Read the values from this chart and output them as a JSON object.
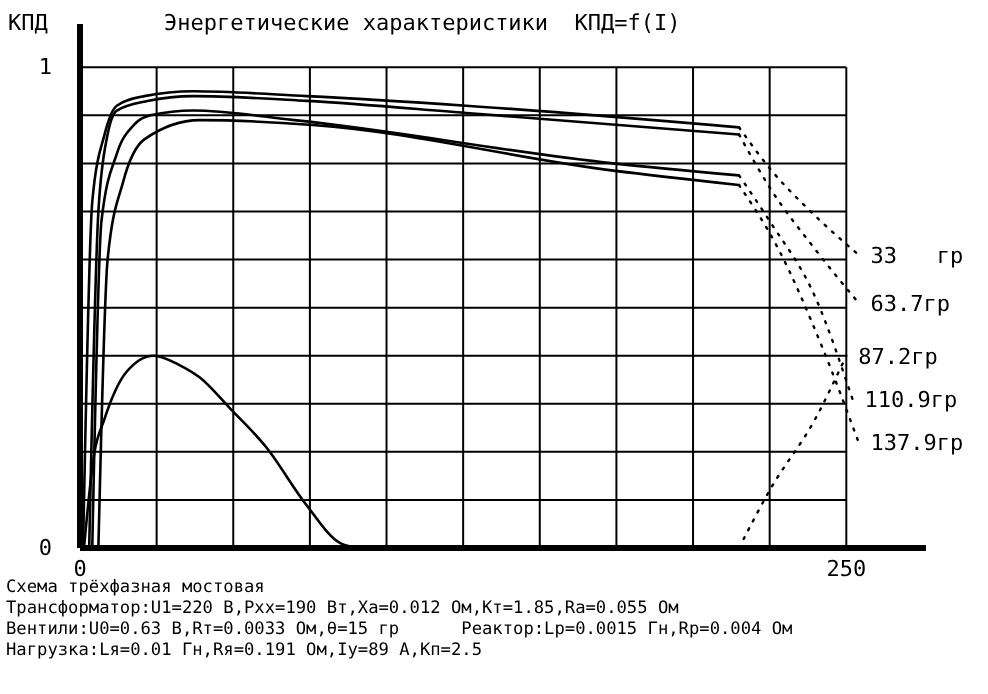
{
  "chart_data": {
    "type": "line",
    "title": "Энергетические характеристики  КПД=f(I)",
    "ylabel": "КПД",
    "xlim": [
      0,
      276
    ],
    "ylim": [
      0,
      1.09
    ],
    "xticks": [
      0,
      {
        "value": 25,
        "label": null
      },
      {
        "value": 50,
        "label": null
      },
      {
        "value": 75,
        "label": null
      },
      {
        "value": 100,
        "label": null
      },
      {
        "value": 125,
        "label": null
      },
      {
        "value": 150,
        "label": null
      },
      {
        "value": 175,
        "label": null
      },
      {
        "value": 200,
        "label": null
      },
      {
        "value": 225,
        "label": null
      },
      250
    ],
    "yticks": [
      0,
      {
        "value": 0.1,
        "label": null
      },
      {
        "value": 0.2,
        "label": null
      },
      {
        "value": 0.3,
        "label": null
      },
      {
        "value": 0.4,
        "label": null
      },
      {
        "value": 0.5,
        "label": null
      },
      {
        "value": 0.6,
        "label": null
      },
      {
        "value": 0.7,
        "label": null
      },
      {
        "value": 0.8,
        "label": null
      },
      {
        "value": 0.9,
        "label": null
      },
      1
    ],
    "grid": true,
    "marker": "none",
    "series": [
      {
        "color": "#000000",
        "line_style": "solid",
        "x": [
          1,
          4,
          8,
          12,
          21,
          37,
          74,
          126,
          215
        ],
        "values": [
          0,
          0.72,
          0.86,
          0.92,
          0.94,
          0.95,
          0.94,
          0.92,
          0.875
        ]
      },
      {
        "color": "#000000",
        "line_style": "solid",
        "x": [
          3,
          6,
          9,
          12,
          22,
          37,
          74,
          126,
          215
        ],
        "values": [
          0,
          0.7,
          0.86,
          0.91,
          0.93,
          0.94,
          0.93,
          0.905,
          0.86
        ]
      },
      {
        "color": "#000000",
        "line_style": "solid",
        "x": [
          4,
          7,
          12,
          17.6,
          23,
          37,
          70,
          174,
          215
        ],
        "values": [
          0,
          0.68,
          0.82,
          0.88,
          0.9,
          0.91,
          0.89,
          0.8,
          0.775
        ]
      },
      {
        "color": "#000000",
        "line_style": "solid",
        "x": [
          6,
          9,
          14,
          21,
          39,
          76,
          174,
          215
        ],
        "values": [
          0,
          0.6,
          0.76,
          0.85,
          0.89,
          0.88,
          0.785,
          0.755
        ]
      },
      {
        "color": "#000000",
        "line_style": "solid",
        "x": [
          1.3,
          4.6,
          7.8,
          15,
          24,
          32.6,
          39,
          49,
          60.7,
          73.8,
          84.9,
          91
        ],
        "values": [
          0,
          0.195,
          0.265,
          0.365,
          0.4,
          0.38,
          0.355,
          0.29,
          0.21,
          0.09,
          0.01,
          0
        ]
      },
      {
        "name": "33   гр",
        "color": "#000000",
        "line_style": "dotted",
        "x": [
          215,
          225,
          240,
          254
        ],
        "values": [
          0.875,
          0.79,
          0.69,
          0.61
        ]
      },
      {
        "name": "63.7гр",
        "color": "#000000",
        "line_style": "dotted",
        "x": [
          215,
          225,
          240,
          254
        ],
        "values": [
          0.86,
          0.75,
          0.62,
          0.51
        ]
      },
      {
        "name": "87.2гр",
        "color": "#000000",
        "line_style": "dotted",
        "x": [
          215,
          225,
          240,
          250
        ],
        "values": [
          0,
          0.12,
          0.27,
          0.4
        ]
      },
      {
        "name": "110.9гр",
        "color": "#000000",
        "line_style": "dotted",
        "x": [
          215,
          225,
          240,
          252
        ],
        "values": [
          0.775,
          0.68,
          0.52,
          0.31
        ]
      },
      {
        "name": "137.9гр",
        "color": "#000000",
        "line_style": "dotted",
        "x": [
          215,
          228,
          242,
          254
        ],
        "values": [
          0.755,
          0.62,
          0.42,
          0.22
        ]
      }
    ],
    "annotations": [
      "Схема трёхфазная мостовая",
      "Трансформатор:U1=220 В,Pxx=190 Вт,Xa=0.012 Ом,Kт=1.85,Ra=0.055 Ом",
      "Вентили:U0=0.63 В,Rт=0.0033 Ом,θ=15 гр      Реактор:Lp=0.0015 Гн,Rp=0.004 Ом",
      "Нагрузка:Lя=0.01 Гн,Rя=0.191 Ом,Iу=89 А,Kп=2.5"
    ]
  }
}
